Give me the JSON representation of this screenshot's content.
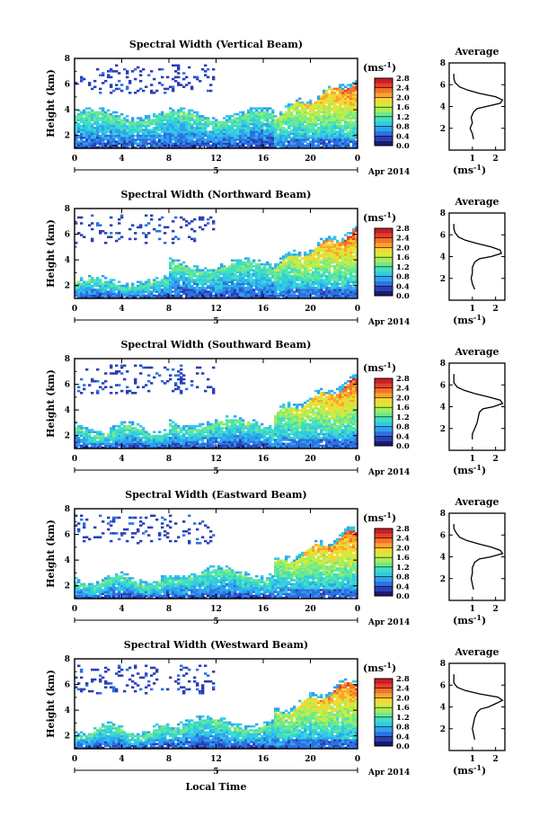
{
  "colormap": [
    "#1a1a6e",
    "#2b3fb5",
    "#2f6fe0",
    "#2fa2ee",
    "#31c9e6",
    "#3fe0c0",
    "#6ee890",
    "#a6ee5a",
    "#d6ea3c",
    "#f6d634",
    "#f8a52c",
    "#f4722a",
    "#e4402a",
    "#c81e28"
  ],
  "cbar_unit": "(ms",
  "cbar_unit_exp": "-1",
  "cbar_unit_close": ")",
  "x_unit_label": "Apr 2014",
  "x_date_label": "5",
  "bottom_xlabel": "Local Time",
  "chart_data": [
    {
      "type": "heatmap",
      "title": "Spectral Width (Vertical Beam)",
      "ylabel": "Height (km)",
      "xlim": [
        0,
        24
      ],
      "ylim": [
        1,
        8
      ],
      "x_ticks": [
        "0",
        "4",
        "8",
        "12",
        "16",
        "20",
        "0"
      ],
      "y_ticks": [
        "2",
        "4",
        "6",
        "8"
      ],
      "colorbar": {
        "ticks": [
          "0.0",
          "0.4",
          "0.8",
          "1.2",
          "1.6",
          "2.0",
          "2.4",
          "2.8"
        ],
        "range": [
          0,
          2.8
        ]
      },
      "profile": {
        "title": "Average",
        "xlabel": "(ms",
        "xlabel_exp": "-1",
        "xlabel_close": ")",
        "x_ticks": [
          "1",
          "2"
        ],
        "y_ticks": [
          "2",
          "4",
          "6",
          "8"
        ],
        "xlim": [
          0,
          2.4
        ],
        "height": [
          1.0,
          1.5,
          2.0,
          2.5,
          3.0,
          3.5,
          3.8,
          4.0,
          4.3,
          4.6,
          4.9,
          5.2,
          5.5,
          5.8,
          6.2,
          6.6,
          7.0
        ],
        "value": [
          1.05,
          1.0,
          0.9,
          1.0,
          0.95,
          1.05,
          1.2,
          1.6,
          2.2,
          2.3,
          2.0,
          1.3,
          0.8,
          0.45,
          0.25,
          0.2,
          0.2
        ]
      }
    },
    {
      "type": "heatmap",
      "title": "Spectral Width (Northward Beam)",
      "ylabel": "Height (km)",
      "xlim": [
        0,
        24
      ],
      "ylim": [
        1,
        8
      ],
      "x_ticks": [
        "0",
        "4",
        "8",
        "12",
        "16",
        "20",
        "0"
      ],
      "y_ticks": [
        "2",
        "4",
        "6",
        "8"
      ],
      "colorbar": {
        "ticks": [
          "0.0",
          "0.4",
          "0.8",
          "1.2",
          "1.6",
          "2.0",
          "2.4",
          "2.8"
        ],
        "range": [
          0,
          2.8
        ]
      },
      "profile": {
        "title": "Average",
        "xlabel": "(ms",
        "xlabel_exp": "-1",
        "xlabel_close": ")",
        "x_ticks": [
          "1",
          "2"
        ],
        "y_ticks": [
          "2",
          "4",
          "6",
          "8"
        ],
        "xlim": [
          0,
          2.4
        ],
        "height": [
          1.0,
          1.5,
          2.0,
          2.5,
          3.0,
          3.5,
          3.8,
          4.0,
          4.3,
          4.6,
          4.9,
          5.2,
          5.5,
          5.8,
          6.2,
          6.6,
          7.0
        ],
        "value": [
          1.1,
          1.0,
          0.95,
          1.0,
          1.0,
          1.1,
          1.3,
          1.8,
          2.25,
          2.2,
          1.8,
          1.2,
          0.7,
          0.4,
          0.25,
          0.2,
          0.2
        ]
      }
    },
    {
      "type": "heatmap",
      "title": "Spectral Width (Southward Beam)",
      "ylabel": "Height (km)",
      "xlim": [
        0,
        24
      ],
      "ylim": [
        1,
        8
      ],
      "x_ticks": [
        "0",
        "4",
        "8",
        "12",
        "16",
        "20",
        "0"
      ],
      "y_ticks": [
        "2",
        "4",
        "6",
        "8"
      ],
      "colorbar": {
        "ticks": [
          "0.0",
          "0.4",
          "0.8",
          "1.2",
          "1.6",
          "2.0",
          "2.4",
          "2.8"
        ],
        "range": [
          0,
          2.8
        ]
      },
      "profile": {
        "title": "Average",
        "xlabel": "(ms",
        "xlabel_exp": "-1",
        "xlabel_close": ")",
        "x_ticks": [
          "1",
          "2"
        ],
        "y_ticks": [
          "2",
          "4",
          "6",
          "8"
        ],
        "xlim": [
          0,
          2.4
        ],
        "height": [
          1.0,
          1.5,
          2.0,
          2.5,
          3.0,
          3.5,
          3.8,
          4.0,
          4.3,
          4.6,
          4.9,
          5.2,
          5.5,
          5.8,
          6.2,
          6.6,
          7.0
        ],
        "value": [
          1.0,
          1.0,
          1.1,
          1.2,
          1.25,
          1.3,
          1.45,
          1.9,
          2.3,
          2.2,
          1.7,
          1.1,
          0.65,
          0.35,
          0.2,
          0.2,
          0.2
        ]
      }
    },
    {
      "type": "heatmap",
      "title": "Spectral Width (Eastward Beam)",
      "ylabel": "Height (km)",
      "xlim": [
        0,
        24
      ],
      "ylim": [
        1,
        8
      ],
      "x_ticks": [
        "0",
        "4",
        "8",
        "12",
        "16",
        "20",
        "0"
      ],
      "y_ticks": [
        "2",
        "4",
        "6",
        "8"
      ],
      "colorbar": {
        "ticks": [
          "0.0",
          "0.4",
          "0.8",
          "1.2",
          "1.6",
          "2.0",
          "2.4",
          "2.8"
        ],
        "range": [
          0,
          2.8
        ]
      },
      "profile": {
        "title": "Average",
        "xlabel": "(ms",
        "xlabel_exp": "-1",
        "xlabel_close": ")",
        "x_ticks": [
          "1",
          "2"
        ],
        "y_ticks": [
          "2",
          "4",
          "6",
          "8"
        ],
        "xlim": [
          0,
          2.4
        ],
        "height": [
          1.0,
          1.5,
          2.0,
          2.5,
          3.0,
          3.5,
          3.8,
          4.0,
          4.3,
          4.6,
          4.9,
          5.2,
          5.5,
          5.8,
          6.2,
          6.6,
          7.0
        ],
        "value": [
          1.05,
          1.0,
          0.95,
          1.0,
          1.0,
          1.1,
          1.3,
          1.8,
          2.3,
          2.2,
          1.8,
          1.25,
          0.75,
          0.45,
          0.3,
          0.2,
          0.2
        ]
      }
    },
    {
      "type": "heatmap",
      "title": "Spectral Width (Westward Beam)",
      "ylabel": "Height (km)",
      "xlim": [
        0,
        24
      ],
      "ylim": [
        1,
        8
      ],
      "x_ticks": [
        "0",
        "4",
        "8",
        "12",
        "16",
        "20",
        "0"
      ],
      "y_ticks": [
        "2",
        "4",
        "6",
        "8"
      ],
      "colorbar": {
        "ticks": [
          "0.0",
          "0.4",
          "0.8",
          "1.2",
          "1.6",
          "2.0",
          "2.4",
          "2.8"
        ],
        "range": [
          0,
          2.8
        ]
      },
      "profile": {
        "title": "Average",
        "xlabel": "(ms",
        "xlabel_exp": "-1",
        "xlabel_close": ")",
        "x_ticks": [
          "1",
          "2"
        ],
        "y_ticks": [
          "2",
          "4",
          "6",
          "8"
        ],
        "xlim": [
          0,
          2.4
        ],
        "height": [
          1.0,
          1.5,
          2.0,
          2.5,
          3.0,
          3.5,
          3.8,
          4.0,
          4.3,
          4.6,
          4.9,
          5.2,
          5.5,
          5.8,
          6.2,
          6.6,
          7.0
        ],
        "value": [
          1.1,
          1.05,
          1.0,
          1.05,
          1.1,
          1.2,
          1.35,
          1.7,
          2.0,
          2.3,
          2.1,
          1.3,
          0.7,
          0.35,
          0.2,
          0.2,
          0.2
        ]
      }
    }
  ]
}
